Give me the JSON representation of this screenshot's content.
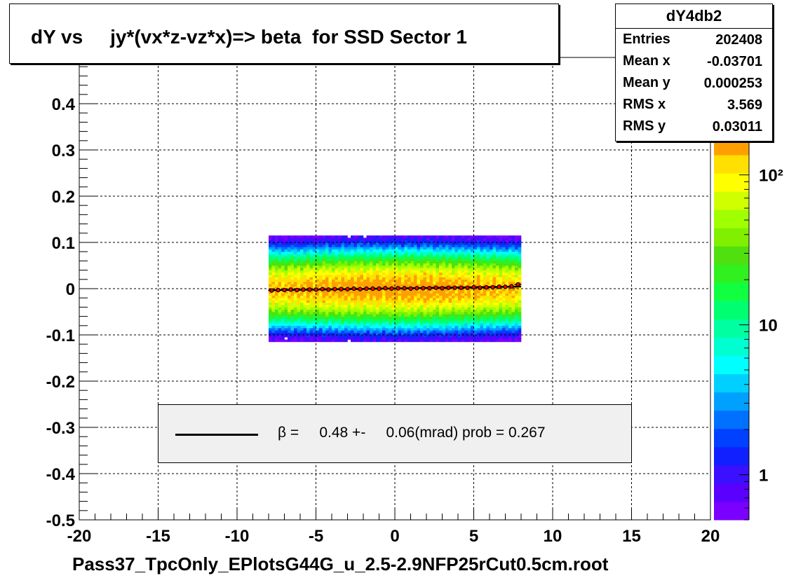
{
  "histogram": {
    "title": "dY vs     jy*(vx*z-vz*x)=> beta  for SSD Sector 1",
    "x_axis_label": "Pass37_TpcOnly_EPlotsG44G_u_2.5-2.9NFP25rCut0.5cm.root"
  },
  "stats": {
    "name": "dY4db2",
    "rows": [
      {
        "label": "Entries",
        "value": "202408"
      },
      {
        "label": "Mean x",
        "value": "-0.03701"
      },
      {
        "label": "Mean y",
        "value": "0.000253"
      },
      {
        "label": "RMS x",
        "value": "3.569"
      },
      {
        "label": "RMS y",
        "value": "0.03011"
      }
    ]
  },
  "fit_legend": {
    "text": "β =     0.48 +-     0.06(mrad) prob = 0.267"
  },
  "colors": {
    "frame": "#000000",
    "grid": "#000000",
    "profile": "#000000",
    "profile_marker": "#ff0000",
    "palette": [
      "#7a00ff",
      "#5a00ff",
      "#3a10ff",
      "#1020ff",
      "#0040ff",
      "#0070ff",
      "#00a0ff",
      "#00d0ff",
      "#00ffff",
      "#00ffd0",
      "#00ffa0",
      "#00ff70",
      "#10ff40",
      "#30f020",
      "#50e010",
      "#80f000",
      "#a0ff00",
      "#d0ff00",
      "#ffff00",
      "#ffe000",
      "#ffa000"
    ]
  },
  "chart_data": {
    "type": "heatmap",
    "xlim": [
      -20,
      20
    ],
    "ylim": [
      -0.5,
      0.5
    ],
    "x_ticks": [
      -20,
      -15,
      -10,
      -5,
      0,
      5,
      10,
      15,
      20
    ],
    "x_tick_labels": [
      "-20",
      "-15",
      "-10",
      "-5",
      "0",
      "5",
      "10",
      "15",
      "20"
    ],
    "y_ticks": [
      -0.5,
      -0.4,
      -0.3,
      -0.2,
      -0.1,
      0,
      0.1,
      0.2,
      0.3,
      0.4
    ],
    "y_tick_labels": [
      "-0.5",
      "-0.4",
      "-0.3",
      "-0.2",
      "-0.1",
      "0",
      "0.1",
      "0.2",
      "0.3",
      "0.4"
    ],
    "grid": true,
    "z_scale": "log",
    "z_range": [
      0.5,
      180
    ],
    "z_ticks": [
      1,
      10,
      100
    ],
    "z_tick_labels": [
      "1",
      "10",
      "10²"
    ],
    "data_extent": {
      "x": [
        -8,
        8
      ],
      "y": [
        -0.115,
        0.115
      ]
    },
    "core_sigma_y": 0.03,
    "peak_count": 180,
    "profile": {
      "x": [
        -7.8,
        -7.4,
        -7.0,
        -6.6,
        -6.2,
        -5.8,
        -5.4,
        -5.0,
        -4.6,
        -4.2,
        -3.8,
        -3.4,
        -3.0,
        -2.6,
        -2.2,
        -1.8,
        -1.4,
        -1.0,
        -0.6,
        -0.2,
        0.2,
        0.6,
        1.0,
        1.4,
        1.8,
        2.2,
        2.6,
        3.0,
        3.4,
        3.8,
        4.2,
        4.6,
        5.0,
        5.4,
        5.8,
        6.2,
        6.6,
        7.0,
        7.4,
        7.8
      ],
      "y": [
        -0.004,
        -0.003,
        -0.003,
        -0.002,
        -0.003,
        -0.002,
        -0.002,
        -0.002,
        -0.001,
        -0.002,
        -0.001,
        -0.001,
        -0.001,
        0.0,
        -0.001,
        0.0,
        0.0,
        0.0,
        0.001,
        0.0,
        0.001,
        0.001,
        0.0,
        0.001,
        0.001,
        0.001,
        0.002,
        0.001,
        0.002,
        0.002,
        0.002,
        0.002,
        0.003,
        0.002,
        0.003,
        0.003,
        0.004,
        0.004,
        0.005,
        0.009
      ]
    },
    "fit_line": {
      "x": [
        -8,
        8
      ],
      "y": [
        -0.0035,
        0.0045
      ]
    },
    "legend_placement": "bottom-center"
  }
}
